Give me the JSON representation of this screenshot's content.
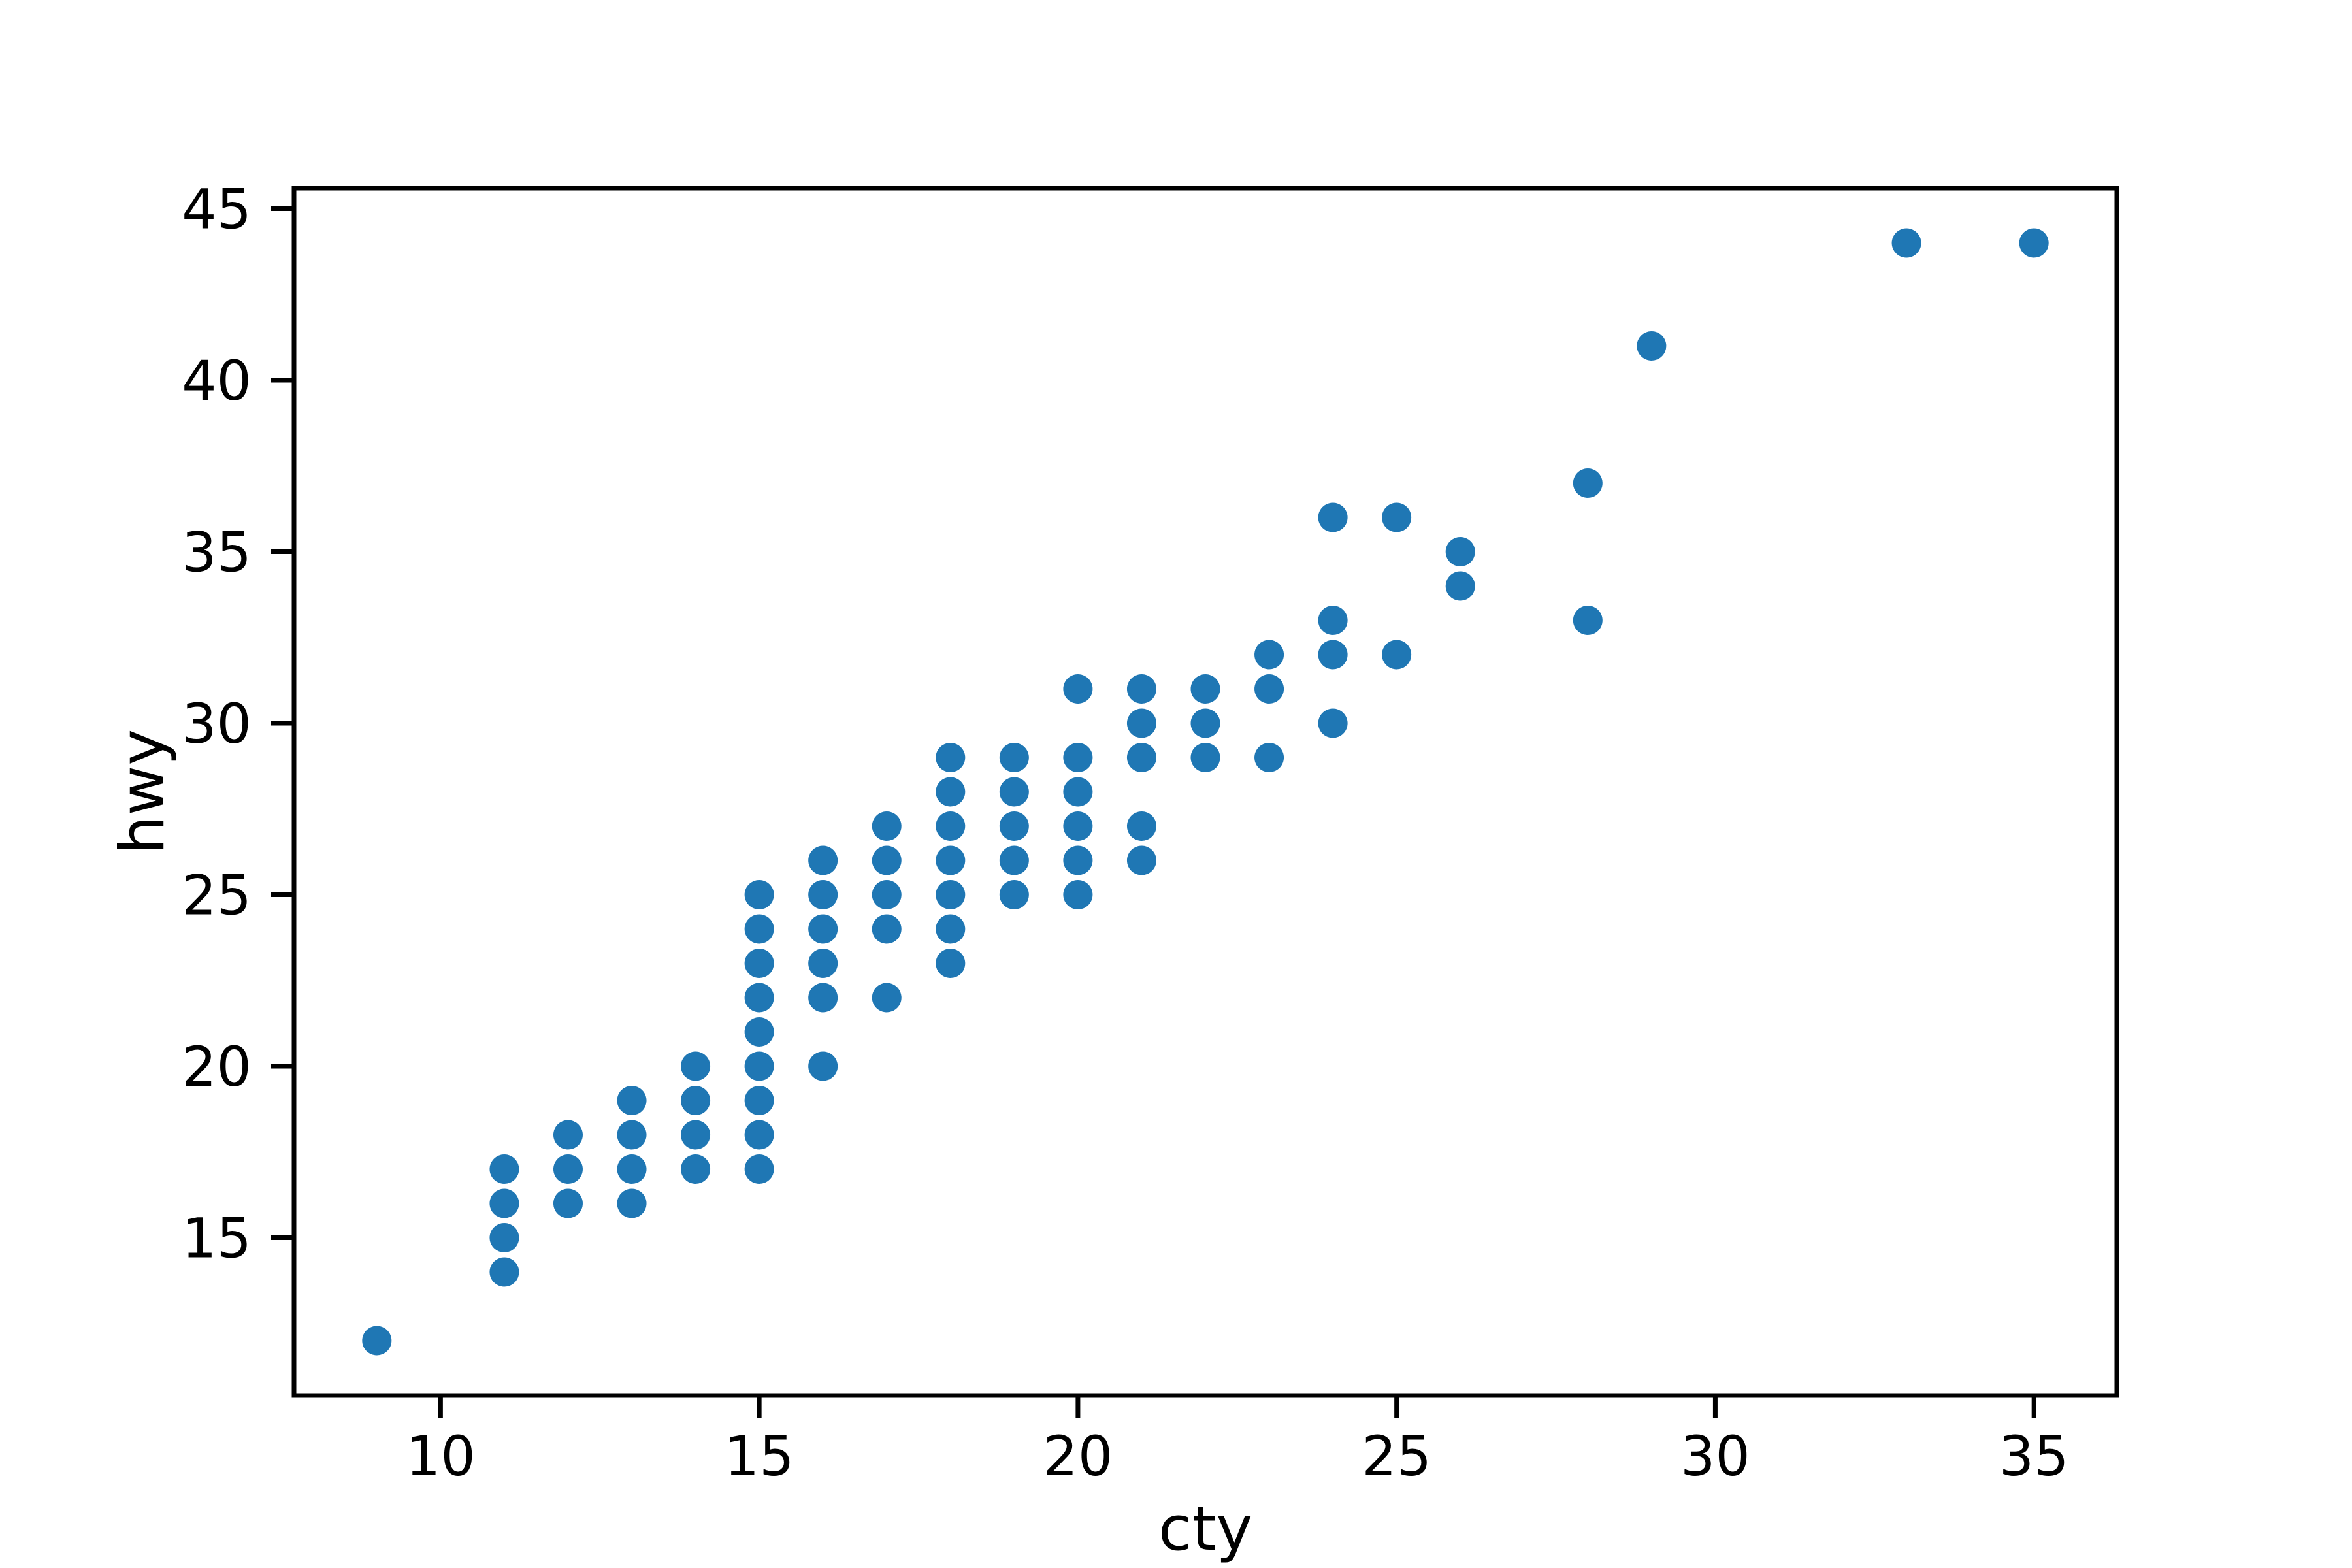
{
  "figure": {
    "background": "#ffffff",
    "axis_color": "#000000",
    "marker_color": "#1f77b4"
  },
  "chart_data": {
    "type": "scatter",
    "title": "",
    "xlabel": "cty",
    "ylabel": "hwy",
    "xlim": [
      7.7,
      36.3
    ],
    "ylim": [
      10.4,
      45.6
    ],
    "xticks": [
      "10",
      "15",
      "20",
      "25",
      "30",
      "35"
    ],
    "xtick_values": [
      10,
      15,
      20,
      25,
      30,
      35
    ],
    "yticks": [
      "15",
      "20",
      "25",
      "30",
      "35",
      "40",
      "45"
    ],
    "ytick_values": [
      15,
      20,
      25,
      30,
      35,
      40,
      45
    ],
    "grid": false,
    "legend": null,
    "marker": {
      "shape": "circle",
      "color": "#1f77b4",
      "radius_px": 22.5
    },
    "points": [
      [
        9,
        12
      ],
      [
        11,
        14
      ],
      [
        11,
        15
      ],
      [
        11,
        16
      ],
      [
        11,
        17
      ],
      [
        12,
        16
      ],
      [
        12,
        17
      ],
      [
        12,
        18
      ],
      [
        13,
        16
      ],
      [
        13,
        17
      ],
      [
        13,
        18
      ],
      [
        13,
        19
      ],
      [
        14,
        17
      ],
      [
        14,
        18
      ],
      [
        14,
        19
      ],
      [
        14,
        20
      ],
      [
        15,
        17
      ],
      [
        15,
        18
      ],
      [
        15,
        19
      ],
      [
        15,
        20
      ],
      [
        15,
        21
      ],
      [
        15,
        22
      ],
      [
        15,
        23
      ],
      [
        15,
        24
      ],
      [
        15,
        25
      ],
      [
        16,
        20
      ],
      [
        16,
        22
      ],
      [
        16,
        23
      ],
      [
        16,
        24
      ],
      [
        16,
        25
      ],
      [
        16,
        26
      ],
      [
        17,
        22
      ],
      [
        17,
        24
      ],
      [
        17,
        25
      ],
      [
        17,
        26
      ],
      [
        17,
        27
      ],
      [
        18,
        23
      ],
      [
        18,
        24
      ],
      [
        18,
        25
      ],
      [
        18,
        26
      ],
      [
        18,
        27
      ],
      [
        18,
        28
      ],
      [
        18,
        29
      ],
      [
        19,
        25
      ],
      [
        19,
        26
      ],
      [
        19,
        27
      ],
      [
        19,
        28
      ],
      [
        19,
        29
      ],
      [
        20,
        25
      ],
      [
        20,
        26
      ],
      [
        20,
        27
      ],
      [
        20,
        28
      ],
      [
        20,
        29
      ],
      [
        20,
        31
      ],
      [
        21,
        26
      ],
      [
        21,
        27
      ],
      [
        21,
        29
      ],
      [
        21,
        30
      ],
      [
        21,
        31
      ],
      [
        22,
        29
      ],
      [
        22,
        30
      ],
      [
        22,
        31
      ],
      [
        23,
        29
      ],
      [
        23,
        31
      ],
      [
        23,
        32
      ],
      [
        24,
        30
      ],
      [
        24,
        32
      ],
      [
        24,
        33
      ],
      [
        24,
        36
      ],
      [
        25,
        32
      ],
      [
        25,
        36
      ],
      [
        26,
        34
      ],
      [
        26,
        35
      ],
      [
        28,
        33
      ],
      [
        28,
        37
      ],
      [
        29,
        41
      ],
      [
        33,
        44
      ],
      [
        35,
        44
      ]
    ]
  }
}
